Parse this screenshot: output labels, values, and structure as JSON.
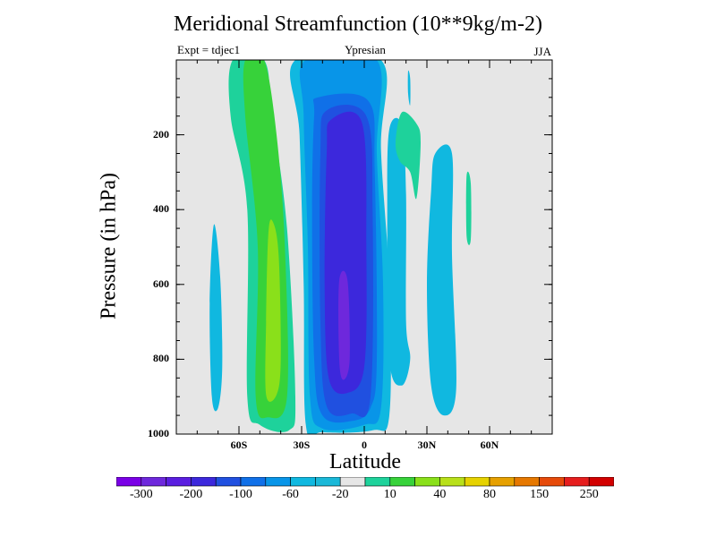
{
  "chart_data": {
    "type": "contour",
    "title": "Meridional Streamfunction (10**9kg/m-2)",
    "left_label": "Expt = tdjec1",
    "center_label": "Ypresian",
    "right_label": "JJA",
    "xlabel": "Latitude",
    "ylabel": "Pressure (in hPa)",
    "xlim": [
      -90,
      90
    ],
    "ylim": [
      1000,
      0
    ],
    "x_ticks": [
      {
        "value": -60,
        "label": "60S"
      },
      {
        "value": -30,
        "label": "30S"
      },
      {
        "value": 0,
        "label": "0"
      },
      {
        "value": 30,
        "label": "30N"
      },
      {
        "value": 60,
        "label": "60N"
      }
    ],
    "y_ticks": [
      {
        "value": 200,
        "label": "200"
      },
      {
        "value": 400,
        "label": "400"
      },
      {
        "value": 600,
        "label": "600"
      },
      {
        "value": 800,
        "label": "800"
      },
      {
        "value": 1000,
        "label": "1000"
      }
    ],
    "background_color": "#e6e6e6",
    "regions": [
      {
        "name": "sh-cell-outer",
        "level": 10,
        "color": "#1ed29b",
        "points": [
          [
            -63,
            0
          ],
          [
            -48,
            0
          ],
          [
            -44,
            150
          ],
          [
            -37,
            450
          ],
          [
            -33,
            900
          ],
          [
            -36,
            990
          ],
          [
            -50,
            975
          ],
          [
            -56,
            900
          ],
          [
            -56,
            400
          ],
          [
            -64,
            150
          ]
        ]
      },
      {
        "name": "sh-cell-40",
        "level": 40,
        "color": "#37d23a",
        "points": [
          [
            -57,
            0
          ],
          [
            -48,
            0
          ],
          [
            -42,
            200
          ],
          [
            -38,
            500
          ],
          [
            -37,
            900
          ],
          [
            -46,
            955
          ],
          [
            -52,
            900
          ],
          [
            -51,
            500
          ],
          [
            -57,
            150
          ]
        ]
      },
      {
        "name": "sh-cell-80",
        "level": 80,
        "color": "#8ae01a",
        "points": [
          [
            -46,
            470
          ],
          [
            -44,
            430
          ],
          [
            -41,
            520
          ],
          [
            -40,
            800
          ],
          [
            -42,
            895
          ],
          [
            -47,
            895
          ],
          [
            -47,
            700
          ]
        ]
      },
      {
        "name": "sh-polar-cell",
        "level": -20,
        "color": "#10b8e0",
        "points": [
          [
            -72,
            440
          ],
          [
            -69,
            580
          ],
          [
            -68,
            820
          ],
          [
            -70,
            930
          ],
          [
            -73,
            900
          ],
          [
            -74,
            650
          ]
        ]
      },
      {
        "name": "tropical-cell-outer",
        "level": -20,
        "color": "#10b8e0",
        "points": [
          [
            -33,
            0
          ],
          [
            8,
            0
          ],
          [
            8,
            240
          ],
          [
            12,
            600
          ],
          [
            12,
            950
          ],
          [
            4,
            990
          ],
          [
            -20,
            995
          ],
          [
            -28,
            975
          ],
          [
            -29,
            600
          ],
          [
            -31,
            200
          ]
        ]
      },
      {
        "name": "tropical-cell-60",
        "level": -60,
        "color": "#0895e8",
        "points": [
          [
            -28,
            0
          ],
          [
            6,
            0
          ],
          [
            6,
            250
          ],
          [
            9,
            600
          ],
          [
            8,
            930
          ],
          [
            0,
            975
          ],
          [
            -20,
            985
          ],
          [
            -26,
            900
          ],
          [
            -27,
            500
          ],
          [
            -29,
            150
          ]
        ]
      },
      {
        "name": "tropical-cell-100",
        "level": -100,
        "color": "#1070e8",
        "points": [
          [
            -22,
            100
          ],
          [
            2,
            110
          ],
          [
            5,
            300
          ],
          [
            6,
            800
          ],
          [
            3,
            930
          ],
          [
            -6,
            965
          ],
          [
            -20,
            950
          ],
          [
            -24,
            800
          ],
          [
            -25,
            400
          ],
          [
            -24,
            150
          ]
        ]
      },
      {
        "name": "tropical-cell-150",
        "level": -150,
        "color": "#2050e0",
        "points": [
          [
            -18,
            135
          ],
          [
            1,
            150
          ],
          [
            4,
            400
          ],
          [
            3,
            900
          ],
          [
            -6,
            945
          ],
          [
            -18,
            925
          ],
          [
            -21,
            700
          ],
          [
            -21,
            250
          ]
        ]
      },
      {
        "name": "tropical-cell-200",
        "level": -200,
        "color": "#3c28dc",
        "points": [
          [
            -16,
            160
          ],
          [
            -1,
            170
          ],
          [
            1,
            500
          ],
          [
            0,
            820
          ],
          [
            -8,
            890
          ],
          [
            -17,
            850
          ],
          [
            -19,
            600
          ],
          [
            -18,
            250
          ]
        ]
      },
      {
        "name": "tropical-cell-250",
        "level": -250,
        "color": "#6e28dc",
        "points": [
          [
            -12,
            590
          ],
          [
            -8,
            590
          ],
          [
            -7,
            800
          ],
          [
            -10,
            855
          ],
          [
            -12,
            800
          ]
        ]
      },
      {
        "name": "nh-cell-20-a",
        "level": -20,
        "color": "#10b8e0",
        "points": [
          [
            12,
            185
          ],
          [
            18,
            175
          ],
          [
            20,
            360
          ],
          [
            20,
            700
          ],
          [
            22,
            800
          ],
          [
            18,
            870
          ],
          [
            12,
            800
          ],
          [
            11,
            400
          ]
        ]
      },
      {
        "name": "nh-positive-blob",
        "level": 10,
        "color": "#1ed29b",
        "points": [
          [
            18,
            140
          ],
          [
            25,
            170
          ],
          [
            27,
            220
          ],
          [
            25,
            370
          ],
          [
            22,
            300
          ],
          [
            17,
            270
          ],
          [
            15,
            220
          ]
        ]
      },
      {
        "name": "nh-thin-blob",
        "level": -20,
        "color": "#10b8e0",
        "points": [
          [
            21,
            30
          ],
          [
            22,
            50
          ],
          [
            22,
            120
          ],
          [
            21,
            90
          ]
        ]
      },
      {
        "name": "nh-cell-20-b",
        "level": -20,
        "color": "#10b8e0",
        "points": [
          [
            34,
            250
          ],
          [
            42,
            250
          ],
          [
            42,
            520
          ],
          [
            44,
            880
          ],
          [
            38,
            950
          ],
          [
            32,
            870
          ],
          [
            30,
            600
          ],
          [
            32,
            350
          ]
        ]
      },
      {
        "name": "nh-small-blob",
        "level": 10,
        "color": "#1ed29b",
        "points": [
          [
            49,
            310
          ],
          [
            51,
            330
          ],
          [
            51,
            480
          ],
          [
            49,
            470
          ]
        ]
      }
    ],
    "colorbar": {
      "colors": [
        "#7a00e6",
        "#6e28dc",
        "#5a1ee0",
        "#3c28dc",
        "#2050e0",
        "#1070e8",
        "#0895e8",
        "#10b8e0",
        "#1ab8d8",
        "#e6e6e6",
        "#1ed29b",
        "#37d23a",
        "#8ae01a",
        "#b8e01a",
        "#e6d200",
        "#e6a000",
        "#e67800",
        "#e64a0a",
        "#e61e1e",
        "#d20000"
      ],
      "labels": [
        {
          "after": 1,
          "text": "-300"
        },
        {
          "after": 3,
          "text": "-200"
        },
        {
          "after": 5,
          "text": "-100"
        },
        {
          "after": 7,
          "text": "-60"
        },
        {
          "after": 9,
          "text": "-20"
        },
        {
          "after": 11,
          "text": "10"
        },
        {
          "after": 13,
          "text": "40"
        },
        {
          "after": 15,
          "text": "80"
        },
        {
          "after": 17,
          "text": "150"
        },
        {
          "after": 19,
          "text": "250"
        }
      ]
    }
  }
}
